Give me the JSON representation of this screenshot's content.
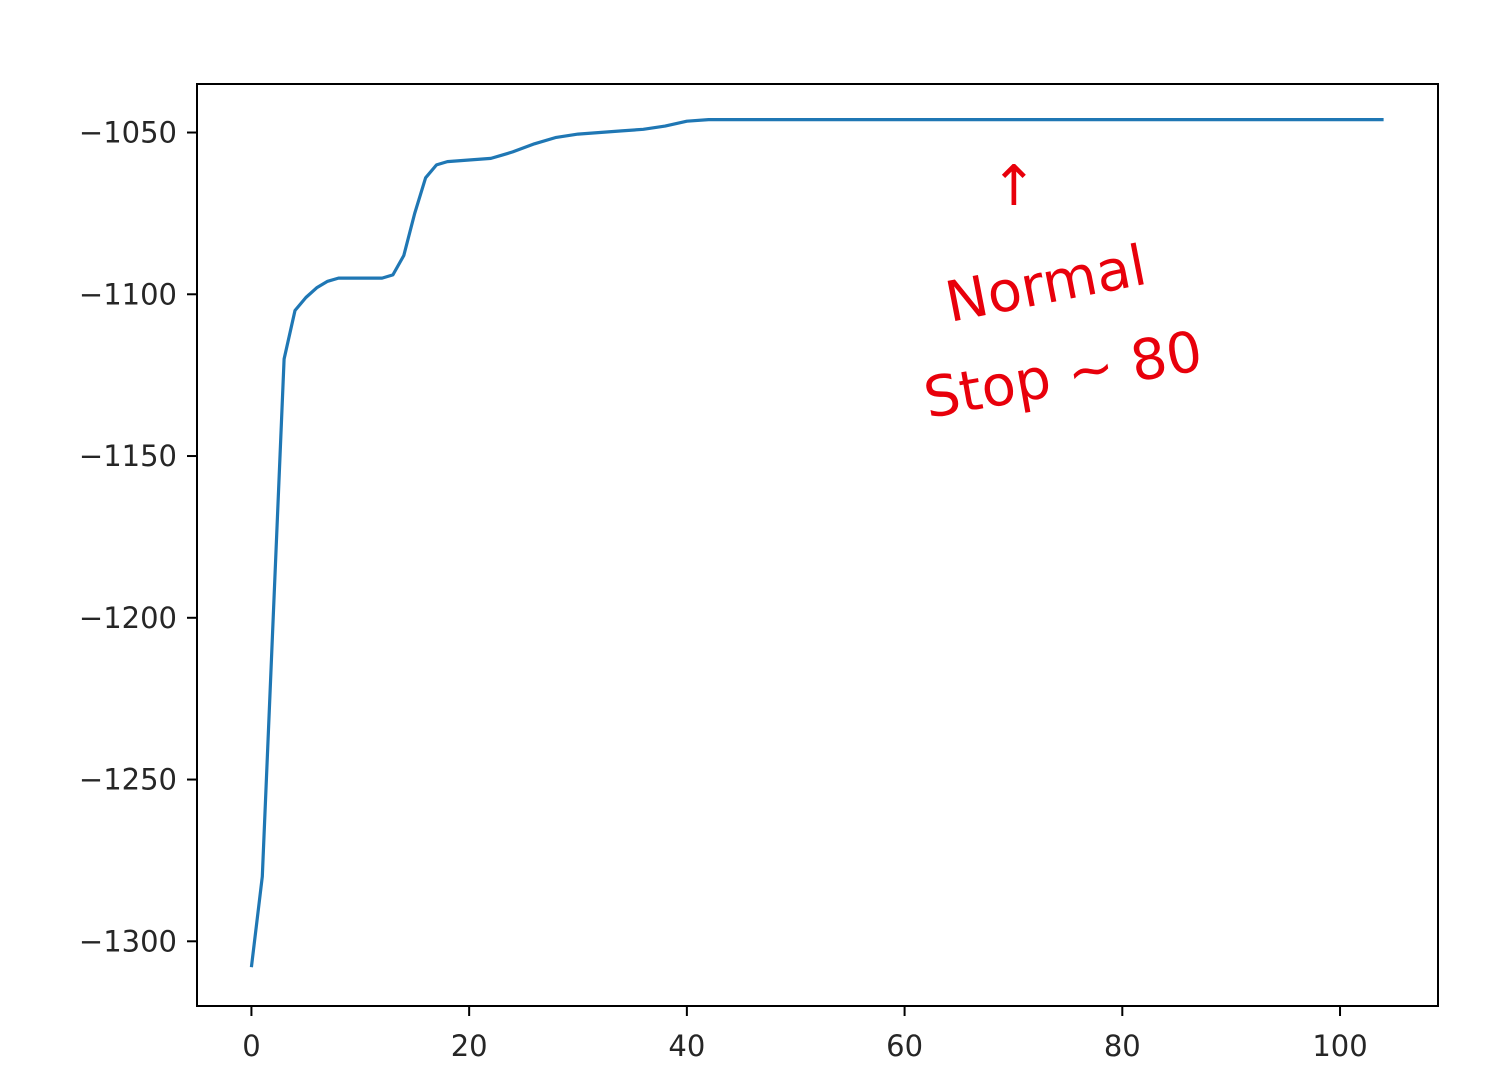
{
  "chart_data": {
    "type": "line",
    "title": "",
    "xlabel": "",
    "ylabel": "",
    "xlim": [
      -5,
      109
    ],
    "ylim": [
      -1320,
      -1035
    ],
    "xticks": [
      0,
      20,
      40,
      60,
      80,
      100
    ],
    "yticks": [
      -1300,
      -1250,
      -1200,
      -1150,
      -1100,
      -1050
    ],
    "xtick_labels": [
      "0",
      "20",
      "40",
      "60",
      "80",
      "100"
    ],
    "ytick_labels": [
      "−1300",
      "−1250",
      "−1200",
      "−1150",
      "−1100",
      "−1050"
    ],
    "grid": false,
    "series": [
      {
        "color": "#1f77b4",
        "x": [
          0,
          1,
          2,
          3,
          4,
          5,
          6,
          7,
          8,
          10,
          11,
          12,
          13,
          14,
          15,
          16,
          17,
          18,
          20,
          22,
          23,
          24,
          26,
          28,
          30,
          32,
          34,
          36,
          38,
          40,
          42,
          44,
          50,
          60,
          70,
          80,
          90,
          100,
          104
        ],
        "y": [
          -1308,
          -1280,
          -1200,
          -1120,
          -1105,
          -1101,
          -1098,
          -1096,
          -1095,
          -1095,
          -1095,
          -1095,
          -1094,
          -1088,
          -1075,
          -1064,
          -1060,
          -1059,
          -1058.5,
          -1058,
          -1057,
          -1056,
          -1053.5,
          -1051.5,
          -1050.5,
          -1050,
          -1049.5,
          -1049,
          -1048,
          -1046.5,
          -1046,
          -1046,
          -1046,
          -1046,
          -1046,
          -1046,
          -1046,
          -1046,
          -1046
        ]
      }
    ],
    "annotations": [
      {
        "text": "↑",
        "color": "#e8000b"
      },
      {
        "text": "Normal",
        "color": "#e8000b"
      },
      {
        "text": "Stop ~ 80",
        "color": "#e8000b"
      }
    ]
  }
}
